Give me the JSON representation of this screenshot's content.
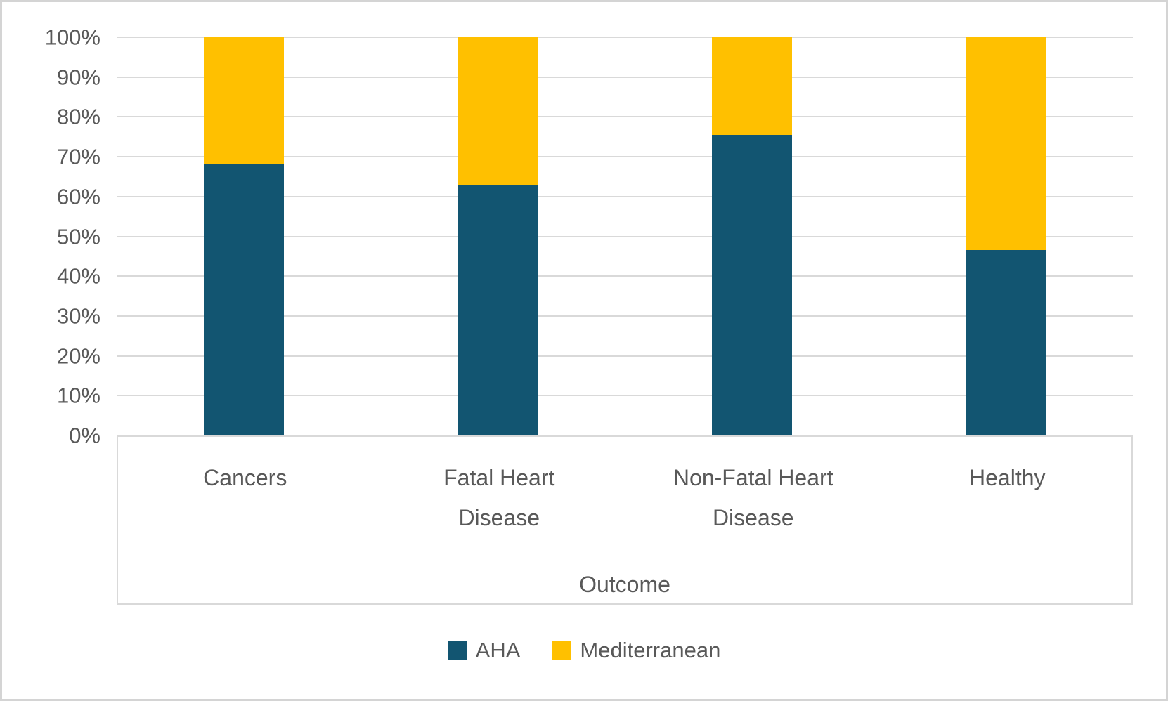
{
  "chart_data": {
    "type": "bar",
    "stacked": true,
    "percent_stacked": true,
    "title": "",
    "xlabel": "Outcome",
    "ylabel": "",
    "categories": [
      "Cancers",
      "Fatal Heart Disease",
      "Non-Fatal Heart Disease",
      "Healthy"
    ],
    "category_lines": [
      [
        "Cancers"
      ],
      [
        "Fatal Heart",
        "Disease"
      ],
      [
        "Non-Fatal Heart",
        "Disease"
      ],
      [
        "Healthy"
      ]
    ],
    "series": [
      {
        "name": "AHA",
        "color": "#125571",
        "values": [
          68,
          63,
          75.5,
          46.5
        ]
      },
      {
        "name": "Mediterranean",
        "color": "#FFC000",
        "values": [
          32,
          37,
          24.5,
          53.5
        ]
      }
    ],
    "ylim": [
      0,
      100
    ],
    "ytick_step": 10,
    "yticks": [
      "0%",
      "10%",
      "20%",
      "30%",
      "40%",
      "50%",
      "60%",
      "70%",
      "80%",
      "90%",
      "100%"
    ],
    "grid": true,
    "legend_position": "bottom"
  },
  "colors": {
    "gridline": "#d9d9d9",
    "axis_box_border": "#d9d9d9",
    "text": "#595959",
    "series_aha": "#125571",
    "series_mediterranean": "#FFC000",
    "outer_border": "#d4d4d4",
    "background": "#ffffff"
  }
}
